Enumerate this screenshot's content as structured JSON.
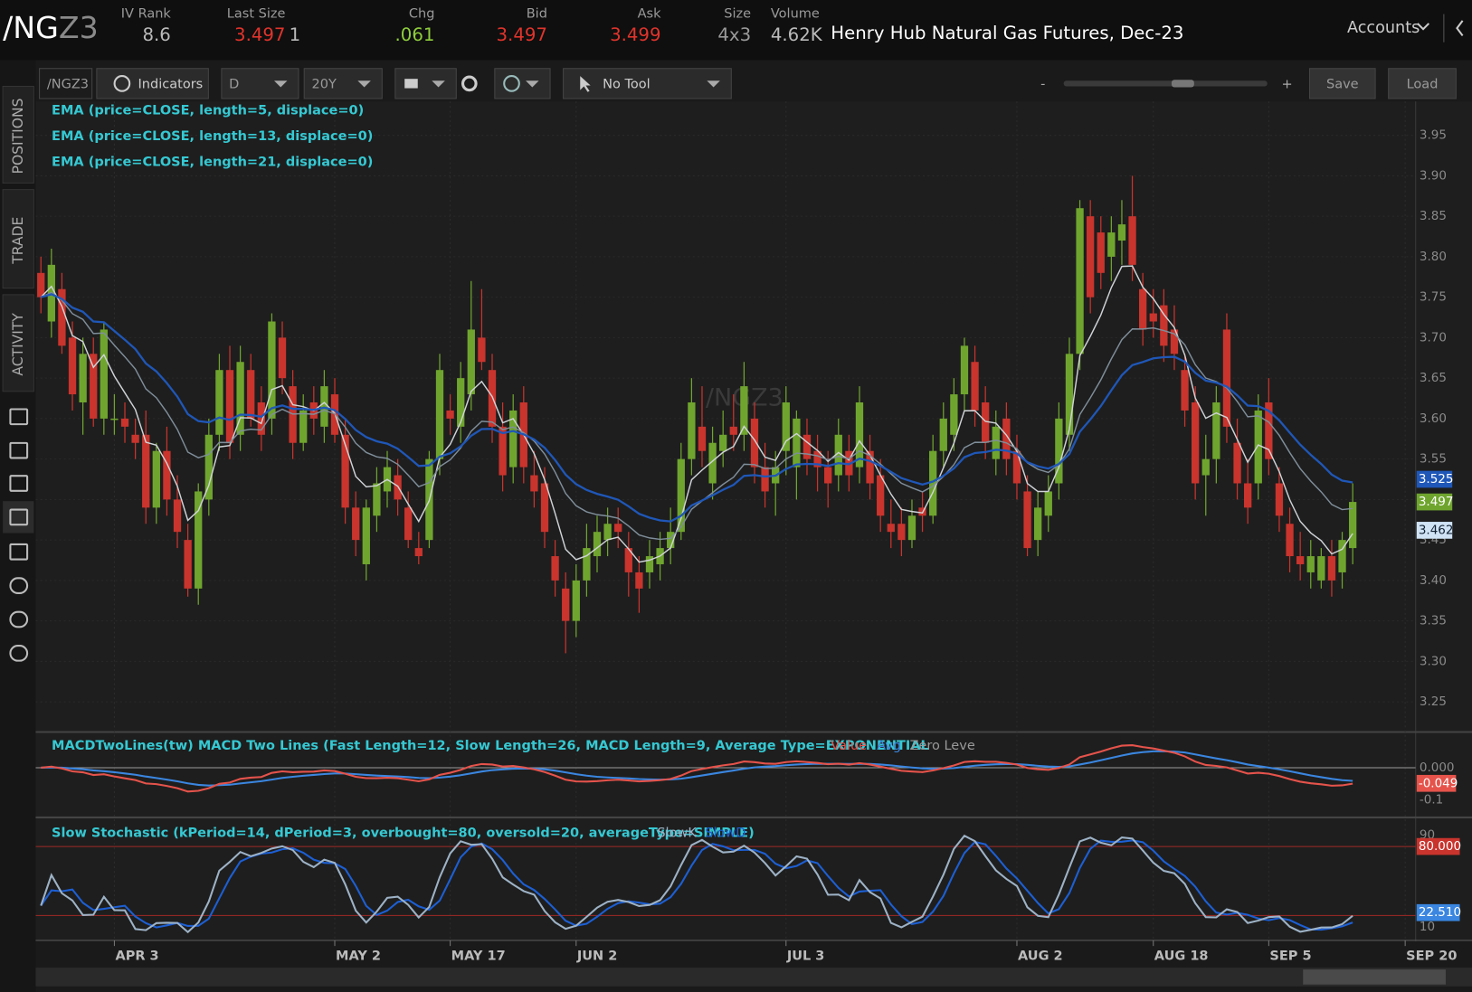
{
  "header": {
    "symbol_root": "/NG",
    "symbol_suffix": "Z3",
    "fields": [
      {
        "label": "IV Rank",
        "value": "8.6"
      },
      {
        "label": "Last Size",
        "value": "3.497",
        "extra": "1"
      },
      {
        "label": "Chg",
        "value": ".061"
      },
      {
        "label": "Bid",
        "value": "3.497"
      },
      {
        "label": "Ask",
        "value": "3.499"
      },
      {
        "label": "Size",
        "value": "4x3"
      },
      {
        "label": "Volume",
        "value": "4.62K"
      }
    ],
    "description": "Henry Hub Natural Gas Futures, Dec-23",
    "accounts": "Accounts"
  },
  "sidebar": {
    "tabs": [
      "POSITIONS",
      "TRADE",
      "ACTIVITY"
    ]
  },
  "toolbar": {
    "symbol": "/NGZ3",
    "indicators": "Indicators",
    "aggregation": "D",
    "period": "20Y",
    "tool": "No Tool",
    "zoom_out": "-",
    "zoom_in": "+",
    "save": "Save",
    "load": "Load"
  },
  "chart_data": {
    "type": "candlestick",
    "watermark": "/NGZ3",
    "studies": [
      "EMA (price=CLOSE, length=5, displace=0)",
      "EMA (price=CLOSE, length=13, displace=0)",
      "EMA (price=CLOSE, length=21, displace=0)"
    ],
    "up_color": "#6fa52e",
    "down_color": "#c9342d",
    "ohlc": [
      [
        3.78,
        3.8,
        3.73,
        3.75
      ],
      [
        3.72,
        3.81,
        3.7,
        3.79
      ],
      [
        3.76,
        3.78,
        3.68,
        3.69
      ],
      [
        3.7,
        3.72,
        3.61,
        3.63
      ],
      [
        3.62,
        3.7,
        3.58,
        3.68
      ],
      [
        3.68,
        3.7,
        3.59,
        3.6
      ],
      [
        3.6,
        3.72,
        3.58,
        3.71
      ],
      [
        3.6,
        3.63,
        3.58,
        3.6
      ],
      [
        3.6,
        3.62,
        3.57,
        3.59
      ],
      [
        3.58,
        3.6,
        3.55,
        3.57
      ],
      [
        3.58,
        3.61,
        3.47,
        3.49
      ],
      [
        3.49,
        3.57,
        3.47,
        3.56
      ],
      [
        3.56,
        3.59,
        3.48,
        3.5
      ],
      [
        3.5,
        3.53,
        3.44,
        3.46
      ],
      [
        3.45,
        3.47,
        3.38,
        3.39
      ],
      [
        3.39,
        3.52,
        3.37,
        3.51
      ],
      [
        3.5,
        3.6,
        3.48,
        3.58
      ],
      [
        3.58,
        3.68,
        3.56,
        3.66
      ],
      [
        3.66,
        3.69,
        3.55,
        3.57
      ],
      [
        3.58,
        3.69,
        3.56,
        3.67
      ],
      [
        3.66,
        3.68,
        3.59,
        3.6
      ],
      [
        3.62,
        3.64,
        3.56,
        3.58
      ],
      [
        3.6,
        3.73,
        3.58,
        3.72
      ],
      [
        3.7,
        3.72,
        3.63,
        3.65
      ],
      [
        3.64,
        3.66,
        3.55,
        3.57
      ],
      [
        3.57,
        3.63,
        3.56,
        3.61
      ],
      [
        3.62,
        3.64,
        3.58,
        3.6
      ],
      [
        3.59,
        3.66,
        3.57,
        3.64
      ],
      [
        3.63,
        3.65,
        3.57,
        3.58
      ],
      [
        3.58,
        3.6,
        3.47,
        3.49
      ],
      [
        3.49,
        3.51,
        3.43,
        3.45
      ],
      [
        3.42,
        3.5,
        3.4,
        3.49
      ],
      [
        3.48,
        3.54,
        3.46,
        3.52
      ],
      [
        3.51,
        3.56,
        3.49,
        3.54
      ],
      [
        3.53,
        3.55,
        3.48,
        3.5
      ],
      [
        3.49,
        3.51,
        3.44,
        3.45
      ],
      [
        3.44,
        3.46,
        3.42,
        3.43
      ],
      [
        3.45,
        3.56,
        3.44,
        3.55
      ],
      [
        3.55,
        3.68,
        3.53,
        3.66
      ],
      [
        3.61,
        3.63,
        3.58,
        3.6
      ],
      [
        3.59,
        3.67,
        3.57,
        3.65
      ],
      [
        3.63,
        3.77,
        3.61,
        3.71
      ],
      [
        3.7,
        3.76,
        3.66,
        3.67
      ],
      [
        3.66,
        3.68,
        3.57,
        3.59
      ],
      [
        3.59,
        3.62,
        3.51,
        3.53
      ],
      [
        3.54,
        3.63,
        3.52,
        3.61
      ],
      [
        3.62,
        3.64,
        3.52,
        3.54
      ],
      [
        3.53,
        3.56,
        3.49,
        3.51
      ],
      [
        3.52,
        3.54,
        3.44,
        3.46
      ],
      [
        3.43,
        3.45,
        3.38,
        3.4
      ],
      [
        3.39,
        3.41,
        3.31,
        3.35
      ],
      [
        3.35,
        3.42,
        3.33,
        3.4
      ],
      [
        3.4,
        3.47,
        3.38,
        3.44
      ],
      [
        3.43,
        3.48,
        3.41,
        3.46
      ],
      [
        3.45,
        3.49,
        3.43,
        3.47
      ],
      [
        3.47,
        3.49,
        3.44,
        3.46
      ],
      [
        3.44,
        3.46,
        3.38,
        3.41
      ],
      [
        3.41,
        3.43,
        3.36,
        3.39
      ],
      [
        3.41,
        3.45,
        3.39,
        3.43
      ],
      [
        3.42,
        3.46,
        3.4,
        3.44
      ],
      [
        3.44,
        3.49,
        3.42,
        3.46
      ],
      [
        3.46,
        3.57,
        3.45,
        3.55
      ],
      [
        3.55,
        3.65,
        3.53,
        3.62
      ],
      [
        3.59,
        3.64,
        3.54,
        3.56
      ],
      [
        3.52,
        3.59,
        3.5,
        3.57
      ],
      [
        3.56,
        3.61,
        3.54,
        3.58
      ],
      [
        3.59,
        3.63,
        3.56,
        3.58
      ],
      [
        3.58,
        3.67,
        3.56,
        3.64
      ],
      [
        3.6,
        3.62,
        3.52,
        3.54
      ],
      [
        3.54,
        3.57,
        3.49,
        3.51
      ],
      [
        3.52,
        3.56,
        3.48,
        3.54
      ],
      [
        3.56,
        3.64,
        3.53,
        3.62
      ],
      [
        3.54,
        3.61,
        3.5,
        3.6
      ],
      [
        3.58,
        3.6,
        3.53,
        3.55
      ],
      [
        3.56,
        3.58,
        3.51,
        3.54
      ],
      [
        3.54,
        3.56,
        3.49,
        3.52
      ],
      [
        3.53,
        3.6,
        3.51,
        3.58
      ],
      [
        3.56,
        3.58,
        3.51,
        3.53
      ],
      [
        3.54,
        3.64,
        3.52,
        3.62
      ],
      [
        3.56,
        3.58,
        3.5,
        3.52
      ],
      [
        3.53,
        3.55,
        3.46,
        3.48
      ],
      [
        3.47,
        3.5,
        3.44,
        3.46
      ],
      [
        3.47,
        3.49,
        3.43,
        3.45
      ],
      [
        3.45,
        3.5,
        3.44,
        3.48
      ],
      [
        3.49,
        3.51,
        3.46,
        3.48
      ],
      [
        3.48,
        3.58,
        3.47,
        3.56
      ],
      [
        3.56,
        3.62,
        3.54,
        3.6
      ],
      [
        3.58,
        3.65,
        3.56,
        3.63
      ],
      [
        3.63,
        3.7,
        3.61,
        3.69
      ],
      [
        3.67,
        3.69,
        3.59,
        3.61
      ],
      [
        3.62,
        3.64,
        3.55,
        3.57
      ],
      [
        3.55,
        3.61,
        3.53,
        3.59
      ],
      [
        3.6,
        3.62,
        3.53,
        3.55
      ],
      [
        3.56,
        3.58,
        3.5,
        3.52
      ],
      [
        3.51,
        3.53,
        3.43,
        3.44
      ],
      [
        3.45,
        3.51,
        3.43,
        3.49
      ],
      [
        3.48,
        3.53,
        3.46,
        3.51
      ],
      [
        3.52,
        3.62,
        3.5,
        3.6
      ],
      [
        3.58,
        3.7,
        3.56,
        3.68
      ],
      [
        3.68,
        3.87,
        3.66,
        3.86
      ],
      [
        3.85,
        3.87,
        3.73,
        3.75
      ],
      [
        3.83,
        3.85,
        3.76,
        3.78
      ],
      [
        3.8,
        3.85,
        3.77,
        3.83
      ],
      [
        3.82,
        3.87,
        3.79,
        3.84
      ],
      [
        3.85,
        3.9,
        3.77,
        3.79
      ],
      [
        3.76,
        3.78,
        3.69,
        3.71
      ],
      [
        3.73,
        3.76,
        3.7,
        3.72
      ],
      [
        3.74,
        3.76,
        3.67,
        3.69
      ],
      [
        3.71,
        3.74,
        3.66,
        3.68
      ],
      [
        3.66,
        3.68,
        3.59,
        3.61
      ],
      [
        3.62,
        3.64,
        3.5,
        3.52
      ],
      [
        3.53,
        3.58,
        3.48,
        3.55
      ],
      [
        3.55,
        3.64,
        3.52,
        3.62
      ],
      [
        3.71,
        3.73,
        3.57,
        3.59
      ],
      [
        3.57,
        3.6,
        3.5,
        3.52
      ],
      [
        3.52,
        3.55,
        3.47,
        3.49
      ],
      [
        3.52,
        3.63,
        3.5,
        3.61
      ],
      [
        3.62,
        3.65,
        3.53,
        3.55
      ],
      [
        3.52,
        3.54,
        3.46,
        3.48
      ],
      [
        3.47,
        3.49,
        3.41,
        3.43
      ],
      [
        3.43,
        3.46,
        3.4,
        3.42
      ],
      [
        3.41,
        3.45,
        3.39,
        3.43
      ],
      [
        3.4,
        3.44,
        3.39,
        3.43
      ],
      [
        3.43,
        3.45,
        3.38,
        3.4
      ],
      [
        3.41,
        3.46,
        3.39,
        3.45
      ],
      [
        3.44,
        3.52,
        3.42,
        3.497
      ]
    ],
    "xlim": [
      -0.5,
      131
    ],
    "xticks": [
      {
        "value": 7,
        "label": "APR 3"
      },
      {
        "value": 28,
        "label": "MAY 2"
      },
      {
        "value": 39,
        "label": "MAY 17"
      },
      {
        "value": 51,
        "label": "JUN 2"
      },
      {
        "value": 71,
        "label": "JUL 3"
      },
      {
        "value": 93,
        "label": "AUG 2"
      },
      {
        "value": 106,
        "label": "AUG 18"
      },
      {
        "value": 117,
        "label": "SEP 5"
      },
      {
        "value": 130,
        "label": "SEP 20"
      }
    ],
    "ylim": [
      3.215,
      3.992
    ],
    "yticks": [
      3.25,
      {
        "value": 3.3,
        "label": "3.30"
      },
      3.35,
      {
        "value": 3.4,
        "label": "3.40"
      },
      3.45,
      {
        "value": 3.5,
        "label": "3.50"
      },
      3.55,
      {
        "value": 3.6,
        "label": "3.60"
      },
      3.65,
      {
        "value": 3.7,
        "label": "3.70"
      },
      3.75,
      {
        "value": 3.8,
        "label": "3.80"
      },
      3.85,
      {
        "value": 3.9,
        "label": "3.90"
      },
      3.95
    ],
    "ema_colors": [
      "#cfd3d6",
      "#7f8e9a",
      "#1f57b8"
    ],
    "price_badges": [
      {
        "value": 3.525,
        "color": "#1f57b8"
      },
      {
        "value": 3.497,
        "color": "#6fa52e"
      },
      {
        "value": 3.462,
        "color": "#cfe3f5"
      }
    ],
    "macd": {
      "title": "MACDTwoLines(tw) MACD Two Lines (Fast Length=12, Slow Length=26, MACD Length=9, Average Type=EXPONENTIAL",
      "legend": [
        {
          "name": "Value",
          "color": "#e5534b"
        },
        {
          "name": "Avg",
          "color": "#3a86e0"
        },
        {
          "name": "Zero Leve",
          "color": "#9a9a9a"
        }
      ],
      "ylim": [
        -0.147,
        0.106
      ],
      "yticks": [
        {
          "value": 0,
          "label": "0.000"
        },
        -0.1
      ],
      "badge": -0.049
    },
    "stochastic": {
      "title": "Slow Stochastic (kPeriod=14, dPeriod=3, overbought=80, oversold=20, averageType=SIMPLE)",
      "legend": [
        {
          "name": "SlowK",
          "color": "#9db2c6"
        },
        {
          "name": "SlowD",
          "color": "#1c5fd4"
        }
      ],
      "ylim": [
        0,
        102
      ],
      "yticks": [
        90,
        10
      ],
      "levels": [
        80,
        20
      ],
      "badges": [
        {
          "value": 80,
          "label": "80.000",
          "color": "#c9342d"
        },
        {
          "value": 22.51,
          "label": "22.510",
          "color": "#3a86e0"
        }
      ]
    }
  }
}
